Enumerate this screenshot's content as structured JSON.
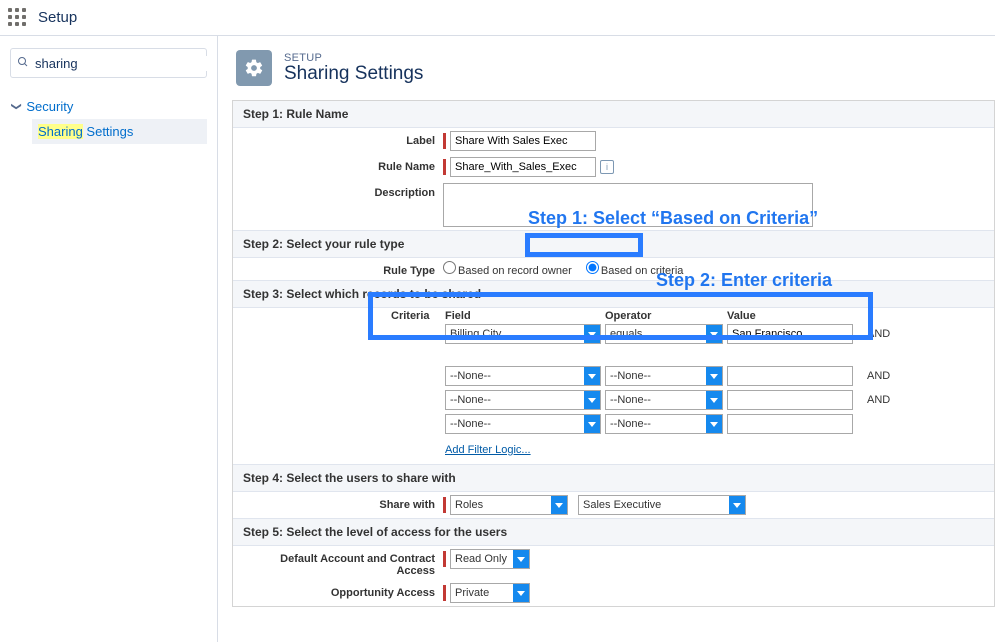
{
  "topbar": {
    "title": "Setup"
  },
  "sidebar": {
    "search_value": "sharing",
    "parent_label": "Security",
    "child_prefix": "Sharing",
    "child_suffix": " Settings"
  },
  "header": {
    "eyebrow": "SETUP",
    "title": "Sharing Settings"
  },
  "step1": {
    "title": "Step 1: Rule Name",
    "label_lbl": "Label",
    "label_value": "Share With Sales Exec",
    "rulename_lbl": "Rule Name",
    "rulename_value": "Share_With_Sales_Exec",
    "description_lbl": "Description"
  },
  "step2": {
    "title": "Step 2: Select your rule type",
    "ruletype_lbl": "Rule Type",
    "option1": "Based on record owner",
    "option2": "Based on criteria"
  },
  "step3": {
    "title": "Step 3: Select which records to be shared",
    "criteria_lbl": "Criteria",
    "hdr_field": "Field",
    "hdr_operator": "Operator",
    "hdr_value": "Value",
    "rows": [
      {
        "field": "Billing City",
        "operator": "equals",
        "value": "San Francisco",
        "and": "AND"
      },
      {
        "field": "--None--",
        "operator": "--None--",
        "value": "",
        "and": "AND"
      },
      {
        "field": "--None--",
        "operator": "--None--",
        "value": "",
        "and": "AND"
      },
      {
        "field": "--None--",
        "operator": "--None--",
        "value": "",
        "and": ""
      }
    ],
    "filter_logic": "Add Filter Logic..."
  },
  "step4": {
    "title": "Step 4: Select the users to share with",
    "sharewith_lbl": "Share with",
    "group_type": "Roles",
    "group_value": "Sales Executive"
  },
  "step5": {
    "title": "Step 5: Select the level of access for the users",
    "account_lbl": "Default Account and Contract Access",
    "account_value": "Read Only",
    "opp_lbl": "Opportunity Access",
    "opp_value": "Private"
  },
  "annotations": {
    "a1": "Step 1: Select “Based on Criteria”",
    "a2": "Step 2: Enter criteria"
  },
  "colors": {
    "annotation": "#2176ef",
    "callout_border": "#2a7cff",
    "salesforce_blue": "#1589ee"
  }
}
